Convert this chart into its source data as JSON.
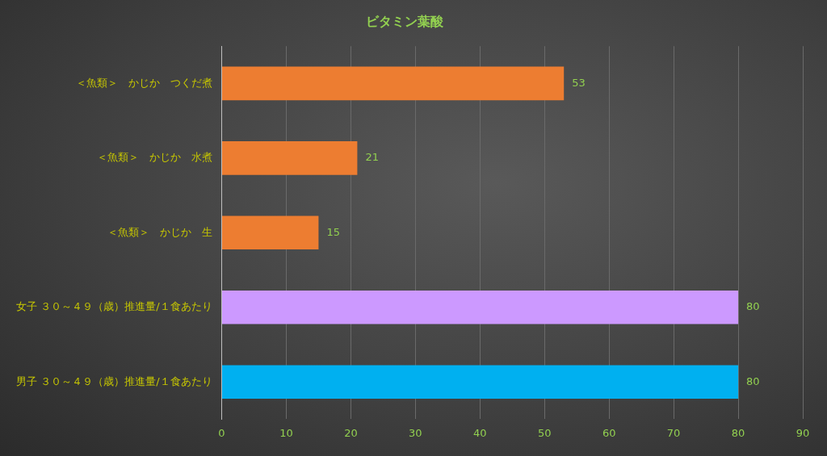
{
  "chart_data": {
    "type": "bar",
    "orientation": "horizontal",
    "title": "ビタミン葉酸",
    "categories": [
      "＜魚類＞　かじか　つくだ煮",
      "＜魚類＞　かじか　水煮",
      "＜魚類＞　かじか　生",
      "女子 ３０～４９（歳）推進量/１食あたり",
      "男子 ３０～４９（歳）推進量/１食あたり"
    ],
    "values": [
      53,
      21,
      15,
      80,
      80
    ],
    "colors": [
      "#ed7d31",
      "#ed7d31",
      "#ed7d31",
      "#cc99ff",
      "#00b0f0"
    ],
    "xlim": [
      0,
      90
    ],
    "xticks": [
      0,
      10,
      20,
      30,
      40,
      50,
      60,
      70,
      80,
      90
    ],
    "grid": "x",
    "legend": false,
    "data_labels": true
  }
}
